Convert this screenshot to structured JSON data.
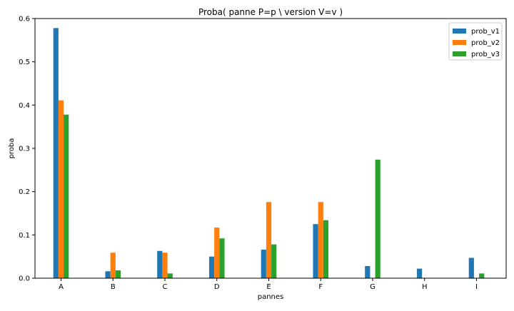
{
  "chart_data": {
    "type": "bar",
    "title": "Proba( panne P=p \\ version V=v )",
    "xlabel": "pannes",
    "ylabel": "proba",
    "categories": [
      "A",
      "B",
      "C",
      "D",
      "E",
      "F",
      "G",
      "H",
      "I"
    ],
    "series": [
      {
        "name": "prob_v1",
        "color": "#1f77b4",
        "values": [
          0.578,
          0.016,
          0.063,
          0.05,
          0.066,
          0.125,
          0.028,
          0.022,
          0.047
        ]
      },
      {
        "name": "prob_v2",
        "color": "#ff7f0e",
        "values": [
          0.411,
          0.059,
          0.059,
          0.117,
          0.176,
          0.176,
          0.0,
          0.0,
          0.0
        ]
      },
      {
        "name": "prob_v3",
        "color": "#2ca02c",
        "values": [
          0.378,
          0.018,
          0.011,
          0.092,
          0.078,
          0.134,
          0.274,
          0.0,
          0.011
        ]
      }
    ],
    "ylim": [
      0,
      0.6
    ],
    "yticks": [
      "0.0",
      "0.1",
      "0.2",
      "0.3",
      "0.4",
      "0.5",
      "0.6"
    ],
    "grid": false,
    "legend": "top-right"
  }
}
